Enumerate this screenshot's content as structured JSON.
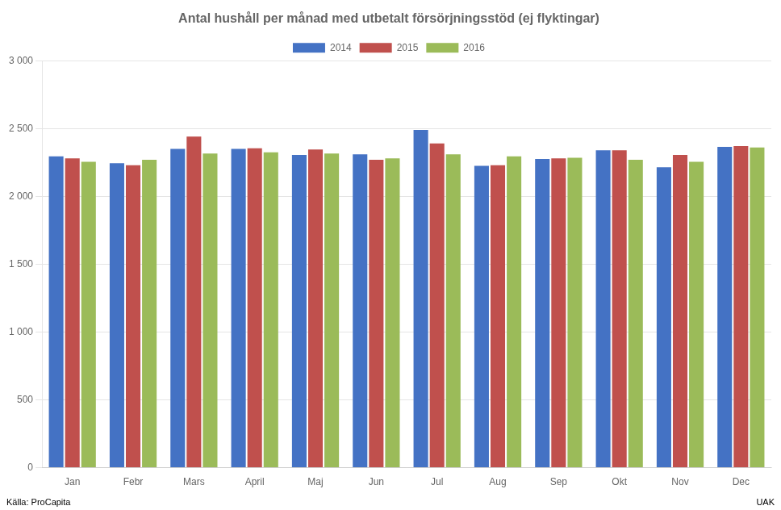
{
  "chart_data": {
    "type": "bar",
    "title": "Antal hushåll per månad med utbetalt försörjningsstöd (ej flyktingar)",
    "categories": [
      "Jan",
      "Febr",
      "Mars",
      "April",
      "Maj",
      "Jun",
      "Jul",
      "Aug",
      "Sep",
      "Okt",
      "Nov",
      "Dec"
    ],
    "series": [
      {
        "name": "2014",
        "color": "#4472C4",
        "values": [
          2295,
          2245,
          2350,
          2350,
          2305,
          2310,
          2490,
          2225,
          2275,
          2340,
          2215,
          2365
        ]
      },
      {
        "name": "2015",
        "color": "#C0504D",
        "values": [
          2280,
          2230,
          2440,
          2355,
          2345,
          2270,
          2390,
          2230,
          2280,
          2340,
          2305,
          2370
        ]
      },
      {
        "name": "2016",
        "color": "#9BBB59",
        "values": [
          2255,
          2270,
          2315,
          2325,
          2315,
          2280,
          2310,
          2295,
          2285,
          2270,
          2255,
          2360
        ]
      }
    ],
    "ylim": [
      0,
      3000
    ],
    "yticks": [
      0,
      500,
      {
        "value": 1000,
        "label": "1 000"
      },
      {
        "value": 1500,
        "label": "1 500"
      },
      {
        "value": 2000,
        "label": "2 000"
      },
      {
        "value": 2500,
        "label": "2 500"
      },
      {
        "value": 3000,
        "label": "3 000"
      }
    ],
    "grid": true,
    "legend": "top",
    "annotations": [
      "Källa: ProCapita",
      "UAK"
    ]
  }
}
